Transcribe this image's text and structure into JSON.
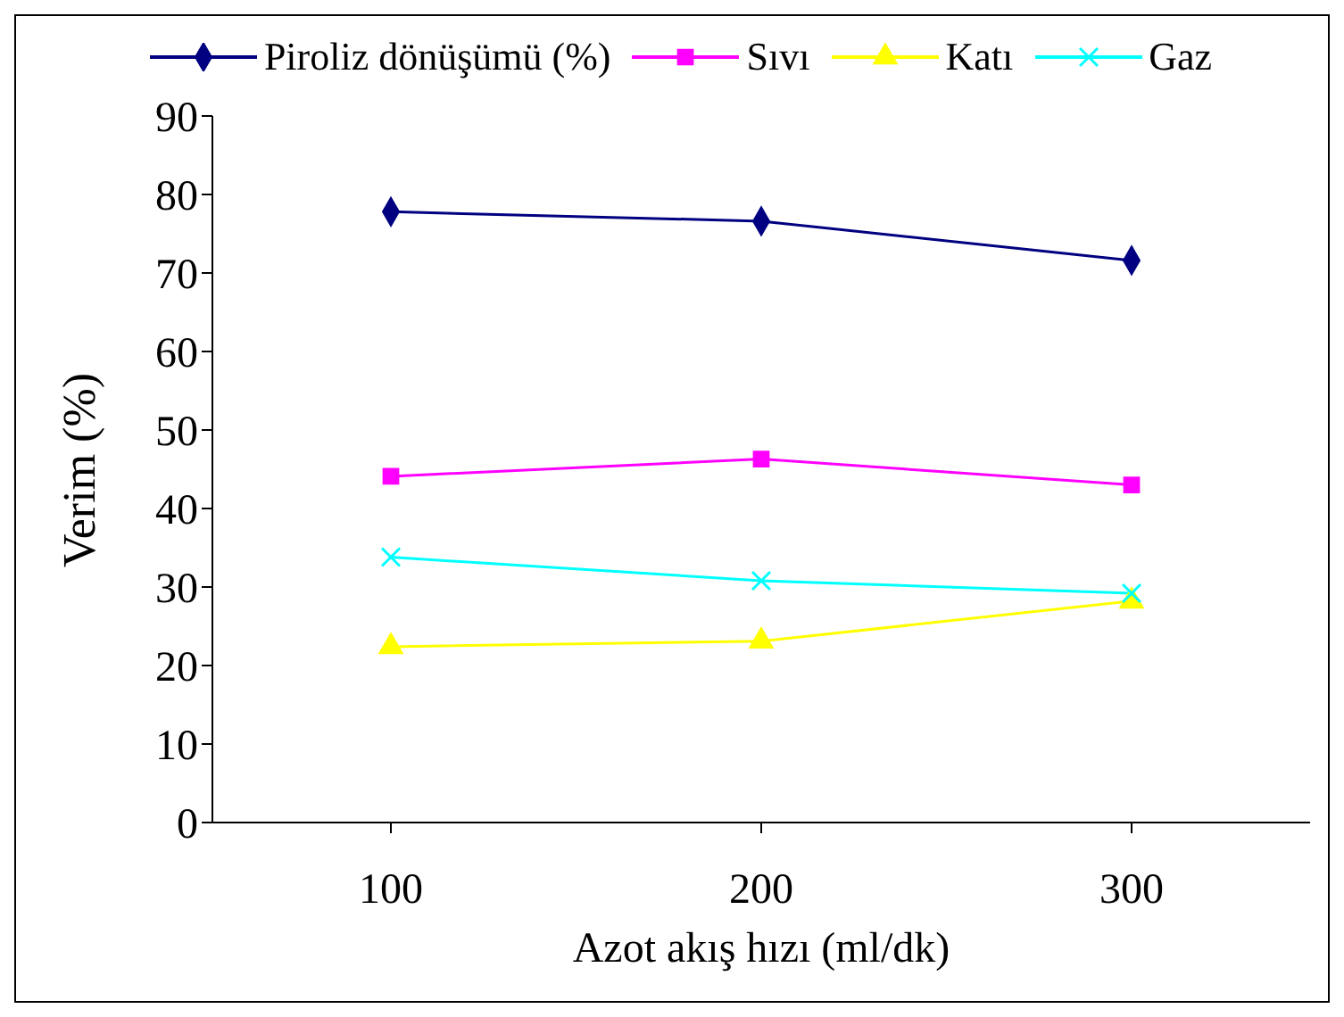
{
  "chart_data": {
    "type": "line",
    "xlabel": "Azot akış hızı (ml/dk)",
    "ylabel": "Verim (%)",
    "categories": [
      "100",
      "200",
      "300"
    ],
    "series": [
      {
        "name": "Piroliz dönüşümü (%)",
        "color": "#000080",
        "marker": "diamond",
        "values": [
          77.8,
          76.6,
          71.6
        ]
      },
      {
        "name": "Sıvı",
        "color": "#ff00ff",
        "marker": "square",
        "values": [
          44.1,
          46.3,
          43.0
        ]
      },
      {
        "name": "Katı",
        "color": "#ffff00",
        "marker": "triangle",
        "values": [
          22.4,
          23.1,
          28.2
        ]
      },
      {
        "name": "Gaz",
        "color": "#00ffff",
        "marker": "cross",
        "values": [
          33.8,
          30.8,
          29.2
        ]
      }
    ],
    "ylim": [
      0,
      90
    ],
    "yticks": [
      0,
      10,
      20,
      30,
      40,
      50,
      60,
      70,
      80,
      90
    ],
    "grid": false,
    "legend": "top"
  }
}
